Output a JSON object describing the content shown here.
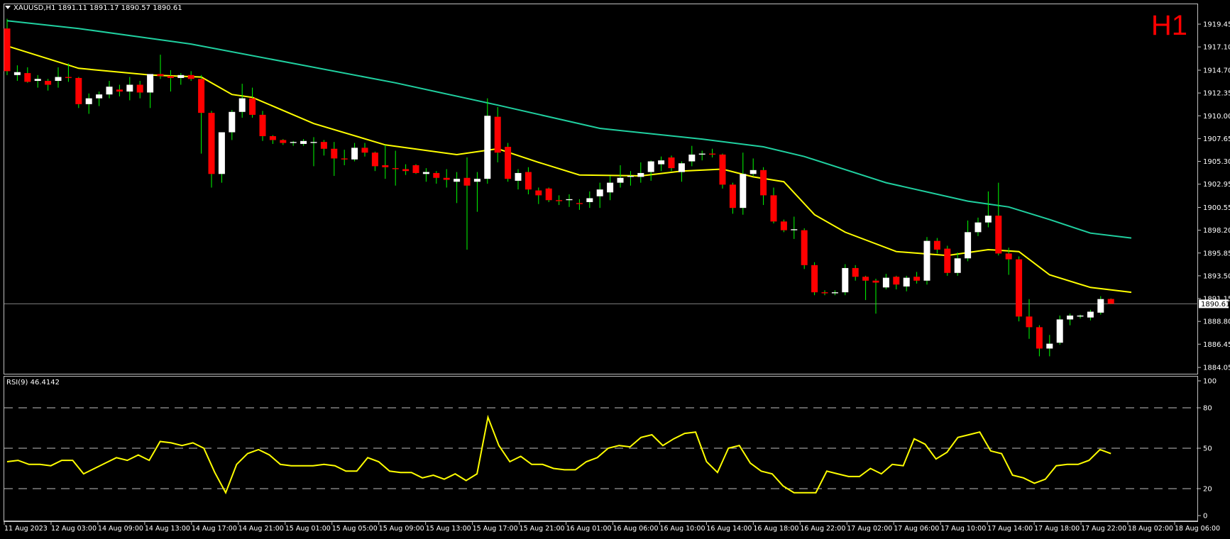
{
  "header": {
    "symbol_line": "XAUUSD,H1  1891.11 1891.17 1890.57 1890.61",
    "timeframe": "H1"
  },
  "rsi": {
    "label": "RSI(9) 46.4142"
  },
  "colors": {
    "background": "#000000",
    "bull": "#ffffff",
    "bear": "#ff0000",
    "wick": "#00ff00",
    "ma_fast": "#ffff00",
    "ma_slow": "#20d0a0",
    "rsi_line": "#ffff00",
    "grid": "#c0c0c0"
  },
  "chart_data": [
    {
      "type": "candlestick",
      "symbol": "XAUUSD",
      "timeframe": "H1",
      "ylim": [
        1883.4,
        1921.5
      ],
      "price_ticks": [
        "1919.45",
        "1917.10",
        "1914.70",
        "1912.35",
        "1910.00",
        "1907.65",
        "1905.30",
        "1902.95",
        "1900.55",
        "1898.20",
        "1895.85",
        "1893.50",
        "1891.15",
        "1888.80",
        "1886.45",
        "1884.05"
      ],
      "current_price": "1890.61",
      "time_ticks": [
        "11 Aug 2023",
        "12 Aug 03:00",
        "14 Aug 09:00",
        "14 Aug 13:00",
        "14 Aug 17:00",
        "14 Aug 21:00",
        "15 Aug 01:00",
        "15 Aug 05:00",
        "15 Aug 09:00",
        "15 Aug 13:00",
        "15 Aug 17:00",
        "15 Aug 21:00",
        "16 Aug 01:00",
        "16 Aug 06:00",
        "16 Aug 10:00",
        "16 Aug 14:00",
        "16 Aug 18:00",
        "16 Aug 22:00",
        "17 Aug 02:00",
        "17 Aug 06:00",
        "17 Aug 10:00",
        "17 Aug 14:00",
        "17 Aug 18:00",
        "17 Aug 22:00",
        "18 Aug 02:00",
        "18 Aug 06:00"
      ],
      "candles": [
        {
          "o": 1919.0,
          "h": 1920.0,
          "l": 1914.2,
          "c": 1914.6
        },
        {
          "o": 1914.2,
          "h": 1915.2,
          "l": 1913.6,
          "c": 1914.5
        },
        {
          "o": 1914.4,
          "h": 1915.0,
          "l": 1913.4,
          "c": 1913.5
        },
        {
          "o": 1913.6,
          "h": 1914.2,
          "l": 1912.9,
          "c": 1913.8
        },
        {
          "o": 1913.6,
          "h": 1913.8,
          "l": 1912.6,
          "c": 1913.2
        },
        {
          "o": 1913.6,
          "h": 1915.0,
          "l": 1912.9,
          "c": 1914.0
        },
        {
          "o": 1914.0,
          "h": 1915.4,
          "l": 1913.5,
          "c": 1913.9
        },
        {
          "o": 1913.9,
          "h": 1914.0,
          "l": 1910.8,
          "c": 1911.2
        },
        {
          "o": 1911.2,
          "h": 1912.3,
          "l": 1910.2,
          "c": 1911.8
        },
        {
          "o": 1911.8,
          "h": 1912.5,
          "l": 1911.0,
          "c": 1912.2
        },
        {
          "o": 1912.2,
          "h": 1913.6,
          "l": 1911.8,
          "c": 1913.0
        },
        {
          "o": 1912.7,
          "h": 1913.2,
          "l": 1912.0,
          "c": 1912.5
        },
        {
          "o": 1912.5,
          "h": 1914.0,
          "l": 1911.6,
          "c": 1913.2
        },
        {
          "o": 1913.2,
          "h": 1913.6,
          "l": 1911.8,
          "c": 1912.4
        },
        {
          "o": 1912.4,
          "h": 1914.2,
          "l": 1910.8,
          "c": 1914.3
        },
        {
          "o": 1914.3,
          "h": 1916.3,
          "l": 1913.8,
          "c": 1914.1
        },
        {
          "o": 1914.1,
          "h": 1914.7,
          "l": 1912.5,
          "c": 1913.9
        },
        {
          "o": 1913.9,
          "h": 1914.4,
          "l": 1913.2,
          "c": 1914.2
        },
        {
          "o": 1914.2,
          "h": 1914.6,
          "l": 1913.6,
          "c": 1913.8
        },
        {
          "o": 1913.8,
          "h": 1914.2,
          "l": 1906.1,
          "c": 1910.3
        },
        {
          "o": 1910.3,
          "h": 1910.5,
          "l": 1902.6,
          "c": 1904.0
        },
        {
          "o": 1904.0,
          "h": 1908.3,
          "l": 1903.1,
          "c": 1908.3
        },
        {
          "o": 1908.3,
          "h": 1910.6,
          "l": 1907.5,
          "c": 1910.4
        },
        {
          "o": 1910.4,
          "h": 1913.3,
          "l": 1909.8,
          "c": 1911.8
        },
        {
          "o": 1911.8,
          "h": 1912.9,
          "l": 1909.8,
          "c": 1910.1
        },
        {
          "o": 1910.1,
          "h": 1910.5,
          "l": 1907.4,
          "c": 1907.9
        },
        {
          "o": 1907.9,
          "h": 1908.0,
          "l": 1907.1,
          "c": 1907.5
        },
        {
          "o": 1907.5,
          "h": 1907.6,
          "l": 1907.0,
          "c": 1907.2
        },
        {
          "o": 1907.2,
          "h": 1907.4,
          "l": 1906.9,
          "c": 1907.3
        },
        {
          "o": 1907.1,
          "h": 1907.6,
          "l": 1906.9,
          "c": 1907.4
        },
        {
          "o": 1907.2,
          "h": 1907.8,
          "l": 1904.8,
          "c": 1907.3
        },
        {
          "o": 1907.3,
          "h": 1907.5,
          "l": 1905.9,
          "c": 1906.6
        },
        {
          "o": 1906.6,
          "h": 1907.3,
          "l": 1903.8,
          "c": 1905.6
        },
        {
          "o": 1905.6,
          "h": 1906.5,
          "l": 1904.9,
          "c": 1905.5
        },
        {
          "o": 1905.5,
          "h": 1907.2,
          "l": 1905.3,
          "c": 1906.7
        },
        {
          "o": 1906.7,
          "h": 1907.2,
          "l": 1905.8,
          "c": 1906.2
        },
        {
          "o": 1906.2,
          "h": 1906.3,
          "l": 1904.3,
          "c": 1904.8
        },
        {
          "o": 1904.9,
          "h": 1907.0,
          "l": 1903.5,
          "c": 1904.7
        },
        {
          "o": 1904.6,
          "h": 1906.4,
          "l": 1902.8,
          "c": 1904.5
        },
        {
          "o": 1904.5,
          "h": 1905.0,
          "l": 1903.9,
          "c": 1904.3
        },
        {
          "o": 1904.9,
          "h": 1905.0,
          "l": 1904.0,
          "c": 1904.1
        },
        {
          "o": 1904.0,
          "h": 1904.6,
          "l": 1903.2,
          "c": 1904.2
        },
        {
          "o": 1904.1,
          "h": 1904.3,
          "l": 1903.0,
          "c": 1903.6
        },
        {
          "o": 1903.6,
          "h": 1904.5,
          "l": 1902.6,
          "c": 1903.4
        },
        {
          "o": 1903.2,
          "h": 1904.2,
          "l": 1901.0,
          "c": 1903.5
        },
        {
          "o": 1903.6,
          "h": 1905.7,
          "l": 1896.2,
          "c": 1902.8
        },
        {
          "o": 1903.2,
          "h": 1904.2,
          "l": 1900.1,
          "c": 1903.5
        },
        {
          "o": 1903.5,
          "h": 1911.8,
          "l": 1903.0,
          "c": 1910.0
        },
        {
          "o": 1909.9,
          "h": 1910.9,
          "l": 1905.2,
          "c": 1906.2
        },
        {
          "o": 1906.8,
          "h": 1907.2,
          "l": 1903.2,
          "c": 1903.5
        },
        {
          "o": 1903.3,
          "h": 1904.5,
          "l": 1902.4,
          "c": 1904.1
        },
        {
          "o": 1904.2,
          "h": 1904.7,
          "l": 1901.9,
          "c": 1902.4
        },
        {
          "o": 1902.3,
          "h": 1902.6,
          "l": 1900.9,
          "c": 1901.8
        },
        {
          "o": 1902.5,
          "h": 1902.6,
          "l": 1901.1,
          "c": 1901.3
        },
        {
          "o": 1901.3,
          "h": 1901.8,
          "l": 1900.8,
          "c": 1901.2
        },
        {
          "o": 1901.3,
          "h": 1901.9,
          "l": 1900.6,
          "c": 1901.4
        },
        {
          "o": 1901.0,
          "h": 1901.4,
          "l": 1900.3,
          "c": 1900.9
        },
        {
          "o": 1901.1,
          "h": 1902.2,
          "l": 1900.5,
          "c": 1901.5
        },
        {
          "o": 1901.7,
          "h": 1903.1,
          "l": 1900.5,
          "c": 1902.4
        },
        {
          "o": 1902.1,
          "h": 1903.8,
          "l": 1901.3,
          "c": 1903.1
        },
        {
          "o": 1903.1,
          "h": 1904.9,
          "l": 1902.6,
          "c": 1903.6
        },
        {
          "o": 1903.7,
          "h": 1904.3,
          "l": 1902.8,
          "c": 1903.8
        },
        {
          "o": 1903.7,
          "h": 1905.2,
          "l": 1903.1,
          "c": 1904.1
        },
        {
          "o": 1904.2,
          "h": 1905.4,
          "l": 1903.3,
          "c": 1905.3
        },
        {
          "o": 1905.0,
          "h": 1905.8,
          "l": 1904.3,
          "c": 1905.4
        },
        {
          "o": 1905.7,
          "h": 1905.9,
          "l": 1904.3,
          "c": 1904.6
        },
        {
          "o": 1904.2,
          "h": 1905.3,
          "l": 1903.2,
          "c": 1905.1
        },
        {
          "o": 1905.3,
          "h": 1906.9,
          "l": 1904.8,
          "c": 1906.0
        },
        {
          "o": 1906.0,
          "h": 1906.4,
          "l": 1905.4,
          "c": 1906.1
        },
        {
          "o": 1906.1,
          "h": 1906.6,
          "l": 1905.7,
          "c": 1906.0
        },
        {
          "o": 1906.0,
          "h": 1906.1,
          "l": 1902.5,
          "c": 1902.9
        },
        {
          "o": 1902.9,
          "h": 1903.1,
          "l": 1899.9,
          "c": 1900.5
        },
        {
          "o": 1900.5,
          "h": 1906.2,
          "l": 1899.8,
          "c": 1904.0
        },
        {
          "o": 1904.0,
          "h": 1905.6,
          "l": 1903.8,
          "c": 1904.4
        },
        {
          "o": 1904.4,
          "h": 1904.7,
          "l": 1900.8,
          "c": 1901.8
        },
        {
          "o": 1901.8,
          "h": 1902.6,
          "l": 1898.9,
          "c": 1899.1
        },
        {
          "o": 1899.1,
          "h": 1899.3,
          "l": 1898.0,
          "c": 1898.2
        },
        {
          "o": 1898.2,
          "h": 1899.6,
          "l": 1897.3,
          "c": 1898.3
        },
        {
          "o": 1898.2,
          "h": 1898.4,
          "l": 1894.2,
          "c": 1894.6
        },
        {
          "o": 1894.6,
          "h": 1894.9,
          "l": 1891.5,
          "c": 1891.8
        },
        {
          "o": 1891.8,
          "h": 1892.0,
          "l": 1891.5,
          "c": 1891.7
        },
        {
          "o": 1891.7,
          "h": 1892.0,
          "l": 1891.5,
          "c": 1891.8
        },
        {
          "o": 1891.8,
          "h": 1894.7,
          "l": 1891.5,
          "c": 1894.3
        },
        {
          "o": 1894.3,
          "h": 1894.6,
          "l": 1893.0,
          "c": 1893.4
        },
        {
          "o": 1893.4,
          "h": 1893.5,
          "l": 1891.0,
          "c": 1893.0
        },
        {
          "o": 1893.0,
          "h": 1893.2,
          "l": 1889.6,
          "c": 1892.8
        },
        {
          "o": 1892.3,
          "h": 1893.7,
          "l": 1892.1,
          "c": 1893.3
        },
        {
          "o": 1893.4,
          "h": 1893.5,
          "l": 1892.1,
          "c": 1892.6
        },
        {
          "o": 1892.4,
          "h": 1893.5,
          "l": 1891.9,
          "c": 1893.3
        },
        {
          "o": 1893.4,
          "h": 1893.9,
          "l": 1892.7,
          "c": 1893.0
        },
        {
          "o": 1893.0,
          "h": 1897.5,
          "l": 1892.6,
          "c": 1897.1
        },
        {
          "o": 1897.1,
          "h": 1897.4,
          "l": 1895.8,
          "c": 1896.2
        },
        {
          "o": 1896.3,
          "h": 1896.6,
          "l": 1893.5,
          "c": 1893.8
        },
        {
          "o": 1893.8,
          "h": 1895.9,
          "l": 1893.5,
          "c": 1895.3
        },
        {
          "o": 1895.3,
          "h": 1899.2,
          "l": 1895.0,
          "c": 1898.0
        },
        {
          "o": 1898.0,
          "h": 1899.5,
          "l": 1897.6,
          "c": 1899.0
        },
        {
          "o": 1899.0,
          "h": 1902.2,
          "l": 1898.5,
          "c": 1899.7
        },
        {
          "o": 1899.7,
          "h": 1903.1,
          "l": 1895.6,
          "c": 1895.8
        },
        {
          "o": 1895.8,
          "h": 1896.4,
          "l": 1893.6,
          "c": 1895.2
        },
        {
          "o": 1895.2,
          "h": 1895.5,
          "l": 1888.8,
          "c": 1889.3
        },
        {
          "o": 1889.3,
          "h": 1891.1,
          "l": 1887.0,
          "c": 1888.2
        },
        {
          "o": 1888.2,
          "h": 1888.4,
          "l": 1885.2,
          "c": 1886.0
        },
        {
          "o": 1886.0,
          "h": 1887.4,
          "l": 1885.2,
          "c": 1886.5
        },
        {
          "o": 1886.6,
          "h": 1889.4,
          "l": 1886.4,
          "c": 1889.0
        },
        {
          "o": 1889.0,
          "h": 1889.6,
          "l": 1888.4,
          "c": 1889.4
        },
        {
          "o": 1889.3,
          "h": 1889.5,
          "l": 1889.1,
          "c": 1889.4
        },
        {
          "o": 1889.2,
          "h": 1890.0,
          "l": 1888.9,
          "c": 1889.8
        },
        {
          "o": 1889.7,
          "h": 1891.4,
          "l": 1889.5,
          "c": 1891.1
        },
        {
          "o": 1891.11,
          "h": 1891.17,
          "l": 1890.57,
          "c": 1890.61
        }
      ],
      "ma_fast": [
        {
          "i": 0,
          "v": 1917.2
        },
        {
          "i": 7,
          "v": 1914.9
        },
        {
          "i": 14,
          "v": 1914.2
        },
        {
          "i": 19,
          "v": 1914.0
        },
        {
          "i": 22,
          "v": 1912.2
        },
        {
          "i": 24,
          "v": 1911.9
        },
        {
          "i": 30,
          "v": 1909.2
        },
        {
          "i": 37,
          "v": 1907.0
        },
        {
          "i": 44,
          "v": 1906.0
        },
        {
          "i": 48,
          "v": 1906.6
        },
        {
          "i": 52,
          "v": 1905.2
        },
        {
          "i": 56,
          "v": 1903.9
        },
        {
          "i": 62,
          "v": 1903.8
        },
        {
          "i": 66,
          "v": 1904.3
        },
        {
          "i": 70,
          "v": 1904.5
        },
        {
          "i": 73,
          "v": 1903.7
        },
        {
          "i": 76,
          "v": 1903.2
        },
        {
          "i": 79,
          "v": 1899.8
        },
        {
          "i": 82,
          "v": 1898.0
        },
        {
          "i": 87,
          "v": 1896.0
        },
        {
          "i": 92,
          "v": 1895.6
        },
        {
          "i": 96,
          "v": 1896.2
        },
        {
          "i": 99,
          "v": 1896.0
        },
        {
          "i": 102,
          "v": 1893.6
        },
        {
          "i": 106,
          "v": 1892.3
        },
        {
          "i": 110,
          "v": 1891.8
        }
      ],
      "ma_slow": [
        {
          "i": 0,
          "v": 1919.8
        },
        {
          "i": 7,
          "v": 1919.0
        },
        {
          "i": 18,
          "v": 1917.4
        },
        {
          "i": 28,
          "v": 1915.4
        },
        {
          "i": 38,
          "v": 1913.4
        },
        {
          "i": 48,
          "v": 1911.1
        },
        {
          "i": 58,
          "v": 1908.7
        },
        {
          "i": 68,
          "v": 1907.6
        },
        {
          "i": 74,
          "v": 1906.8
        },
        {
          "i": 78,
          "v": 1905.8
        },
        {
          "i": 86,
          "v": 1903.1
        },
        {
          "i": 94,
          "v": 1901.2
        },
        {
          "i": 98,
          "v": 1900.6
        },
        {
          "i": 102,
          "v": 1899.3
        },
        {
          "i": 106,
          "v": 1897.9
        },
        {
          "i": 110,
          "v": 1897.4
        }
      ]
    },
    {
      "type": "line",
      "title": "RSI(9) 46.4142",
      "ylim": [
        0,
        100
      ],
      "y_ticks": [
        "100",
        "80",
        "50",
        "20",
        "0"
      ],
      "levels": [
        80,
        50,
        20
      ],
      "values": [
        40,
        41,
        38,
        38,
        37,
        41,
        41,
        31,
        35,
        39,
        43,
        41,
        45,
        41,
        55,
        54,
        52,
        54,
        50,
        32,
        17,
        38,
        46,
        49,
        45,
        38,
        37,
        37,
        37,
        38,
        37,
        33,
        33,
        43,
        40,
        33,
        32,
        32,
        28,
        30,
        27,
        31,
        26,
        31,
        73,
        52,
        40,
        44,
        38,
        38,
        35,
        34,
        34,
        40,
        43,
        50,
        52,
        51,
        58,
        60,
        52,
        57,
        61,
        62,
        40,
        32,
        50,
        52,
        39,
        33,
        31,
        22,
        17,
        17,
        17,
        33,
        31,
        29,
        29,
        35,
        31,
        38,
        37,
        57,
        53,
        42,
        47,
        58,
        60,
        62,
        48,
        46,
        30,
        28,
        24,
        27,
        37,
        38,
        38,
        41,
        49,
        46
      ]
    }
  ]
}
